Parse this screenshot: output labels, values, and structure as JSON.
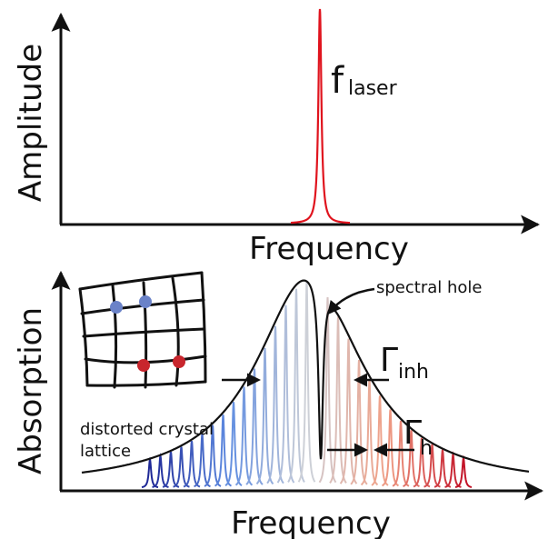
{
  "top_panel": {
    "y_axis_label": "Amplitude",
    "x_axis_label": "Frequency",
    "laser_symbol": "f",
    "laser_subscript": "laser"
  },
  "bottom_panel": {
    "y_axis_label": "Absorption",
    "x_axis_label": "Frequency",
    "hole_label": "spectral hole",
    "inhomogeneous_symbol": "Γ",
    "inhomogeneous_subscript": "inh",
    "homogeneous_symbol": "Γ",
    "homogeneous_subscript": "h",
    "lattice_label": [
      "distorted crystal",
      "lattice"
    ]
  }
}
